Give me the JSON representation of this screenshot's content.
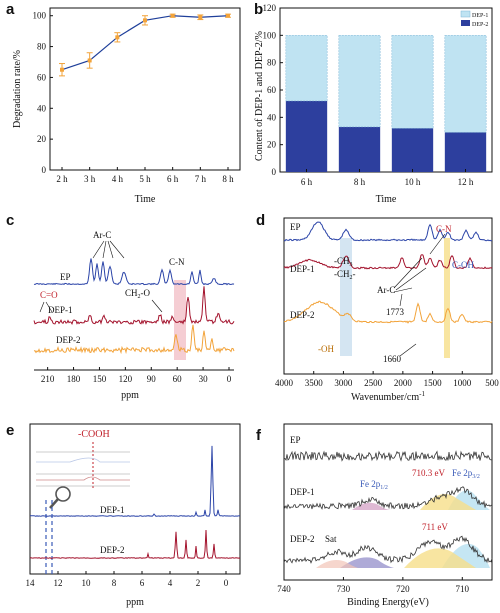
{
  "colors": {
    "line_a": "#1f3f9a",
    "err_a": "#f2a33a",
    "dep1_bar": "#bfe3f2",
    "dep2_bar": "#2d3f9e",
    "ep": "#2b44a8",
    "dep1": "#a3122c",
    "dep2": "#f2a33a",
    "highlight_pink": "#f1b8c0",
    "highlight_blue": "#c9deef",
    "highlight_yellow": "#f6df8a",
    "dashed_blue": "#3a5bb8",
    "red_label": "#c0202a"
  },
  "chart_data": [
    {
      "panel": "a",
      "type": "line",
      "x": [
        "2 h",
        "3 h",
        "4 h",
        "5 h",
        "6 h",
        "7 h",
        "8 h"
      ],
      "values": [
        65,
        71,
        86,
        97,
        100,
        99,
        100
      ],
      "errors": [
        4,
        5,
        3,
        3,
        1,
        1.5,
        1
      ],
      "xlabel": "Time",
      "ylabel": "Degradation rate/%",
      "ylim": [
        0,
        100
      ],
      "yticks": [
        0,
        20,
        40,
        60,
        80,
        100
      ]
    },
    {
      "panel": "b",
      "type": "bar",
      "categories": [
        "6 h",
        "8 h",
        "10 h",
        "12 h"
      ],
      "series": [
        {
          "name": "DEP-2",
          "values": [
            52,
            33,
            32,
            29
          ]
        },
        {
          "name": "DEP-1",
          "values": [
            48,
            67,
            68,
            71
          ]
        }
      ],
      "xlabel": "Time",
      "ylabel": "Content of DEP-1 and DEP-2/%",
      "ylim": [
        0,
        120
      ],
      "yticks": [
        0,
        20,
        40,
        60,
        80,
        100,
        120
      ],
      "legend": "top-right"
    },
    {
      "panel": "c",
      "type": "line",
      "xlabel": "ppm",
      "xlim": [
        220,
        0
      ],
      "xticks": [
        210,
        180,
        150,
        120,
        90,
        60,
        30,
        0
      ],
      "traces": [
        "EP",
        "DEP-1",
        "DEP-2"
      ],
      "annotations": [
        "Ar-C",
        "C-N",
        "C=O",
        "CH2-O"
      ]
    },
    {
      "panel": "d",
      "type": "line",
      "xlabel": "Wavenumber/cm",
      "xlabel_sup": "-1",
      "xlim": [
        4000,
        500
      ],
      "xticks": [
        4000,
        3500,
        3000,
        2500,
        2000,
        1500,
        1000,
        500
      ],
      "traces": [
        "EP",
        "DEP-1",
        "DEP-2"
      ],
      "annotations": [
        "-CH3",
        "-CH2-",
        "C-N",
        "C-OH",
        "Ar-C",
        "1773",
        "-OH",
        "1660"
      ]
    },
    {
      "panel": "e",
      "type": "line",
      "xlabel": "ppm",
      "xlim": [
        14,
        -1
      ],
      "xticks": [
        14,
        12,
        10,
        8,
        6,
        4,
        2,
        0
      ],
      "traces": [
        "DEP-1",
        "DEP-2"
      ],
      "annotations": [
        "-COOH"
      ]
    },
    {
      "panel": "f",
      "type": "line",
      "xlabel": "Binding Energy(eV)",
      "xlim": [
        740,
        705
      ],
      "xticks": [
        740,
        730,
        720,
        710
      ],
      "traces": [
        "EP",
        "DEP-1",
        "DEP-2"
      ],
      "annotations": [
        "Fe 2p1/2",
        "710.3 eV",
        "Fe 2p3/2",
        "Sat",
        "711 eV"
      ]
    }
  ],
  "labels": {
    "panel_a": "a",
    "panel_b": "b",
    "panel_c": "c",
    "panel_d": "d",
    "panel_e": "e",
    "panel_f": "f",
    "ep": "EP",
    "dep1": "DEP-1",
    "dep2": "DEP-2",
    "ar_c": "Ar-C",
    "c_n": "C-N",
    "c_o": "C=O",
    "ch2o": "CH",
    "ch2o_sub": "2",
    "ch2o_tail": "-O",
    "ch3": "-CH",
    "ch3_sub": "3",
    "ch2": "-CH",
    "ch2_sub": "2",
    "ch2_tail": "-",
    "c_oh": "C-OH",
    "n1773": "1773",
    "oh": "-OH",
    "n1660": "1660",
    "cooh": "-COOH",
    "fe2p12": "Fe 2p",
    "fe2p12_sub": "1/2",
    "e7103": "710.3 eV",
    "fe2p32": "Fe 2p",
    "fe2p32_sub": "3/2",
    "sat": "Sat",
    "e711": "711 eV"
  }
}
